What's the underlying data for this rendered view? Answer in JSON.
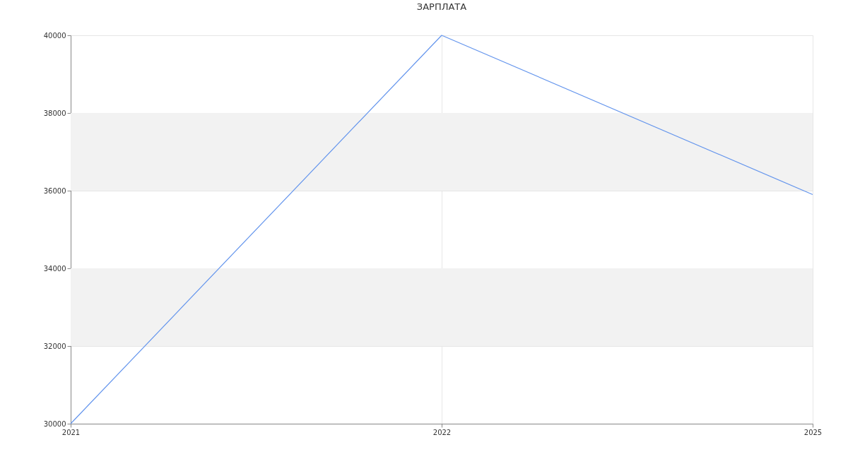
{
  "chart_data": {
    "type": "line",
    "title": "ЗАРПЛАТА",
    "categories": [
      "2021",
      "2022",
      "2025"
    ],
    "series": [
      {
        "color": "#6495ed",
        "values": [
          30000,
          40000,
          35900
        ]
      }
    ],
    "ylim": [
      30000,
      40000
    ],
    "yticks": [
      30000,
      32000,
      34000,
      36000,
      38000,
      40000
    ],
    "bands": [
      {
        "axis": "y",
        "from": 32000,
        "to": 34000,
        "color": "#f2f2f2"
      },
      {
        "axis": "y",
        "from": 36000,
        "to": 38000,
        "color": "#f2f2f2"
      }
    ],
    "grid": true,
    "marker": "none",
    "line_style": "solid"
  }
}
